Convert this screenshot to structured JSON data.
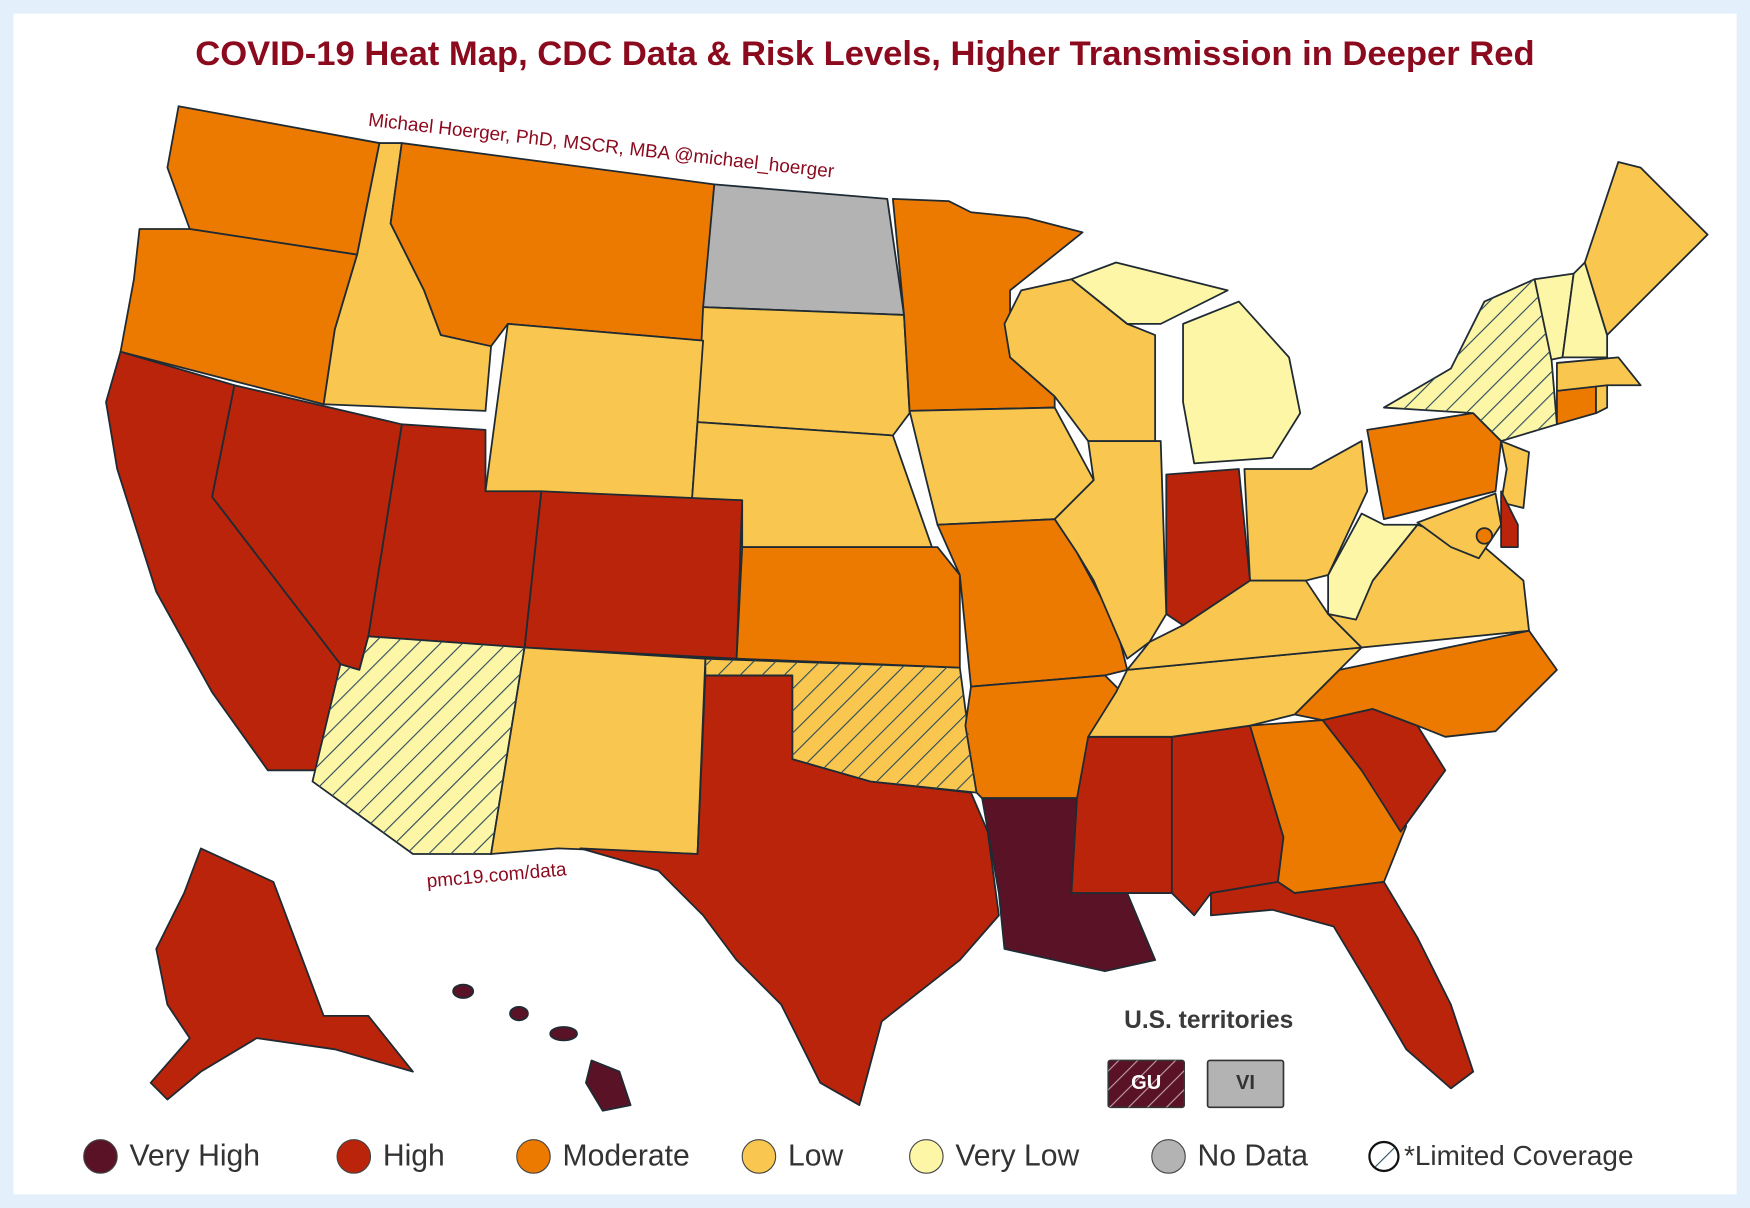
{
  "title": "COVID-19 Heat Map, CDC Data & Risk Levels, Higher Transmission in Deeper Red",
  "credit": "Michael Hoerger, PhD, MSCR, MBA  @michael_hoerger",
  "source": "pmc19.com/data",
  "territories": {
    "title": "U.S. territories",
    "items": [
      {
        "label": "GU",
        "color": "#5a1226",
        "limited_coverage": true
      },
      {
        "label": "VI",
        "color": "#b3b3b3",
        "limited_coverage": false
      }
    ]
  },
  "legend": [
    {
      "label": "Very High",
      "color": "#5a1226"
    },
    {
      "label": "High",
      "color": "#b9240a"
    },
    {
      "label": "Moderate",
      "color": "#ec7a00"
    },
    {
      "label": "Low",
      "color": "#f9c74f"
    },
    {
      "label": "Very Low",
      "color": "#fdf6a6"
    },
    {
      "label": "No Data",
      "color": "#b3b3b3"
    }
  ],
  "limited_coverage_label": "*Limited Coverage"
}
